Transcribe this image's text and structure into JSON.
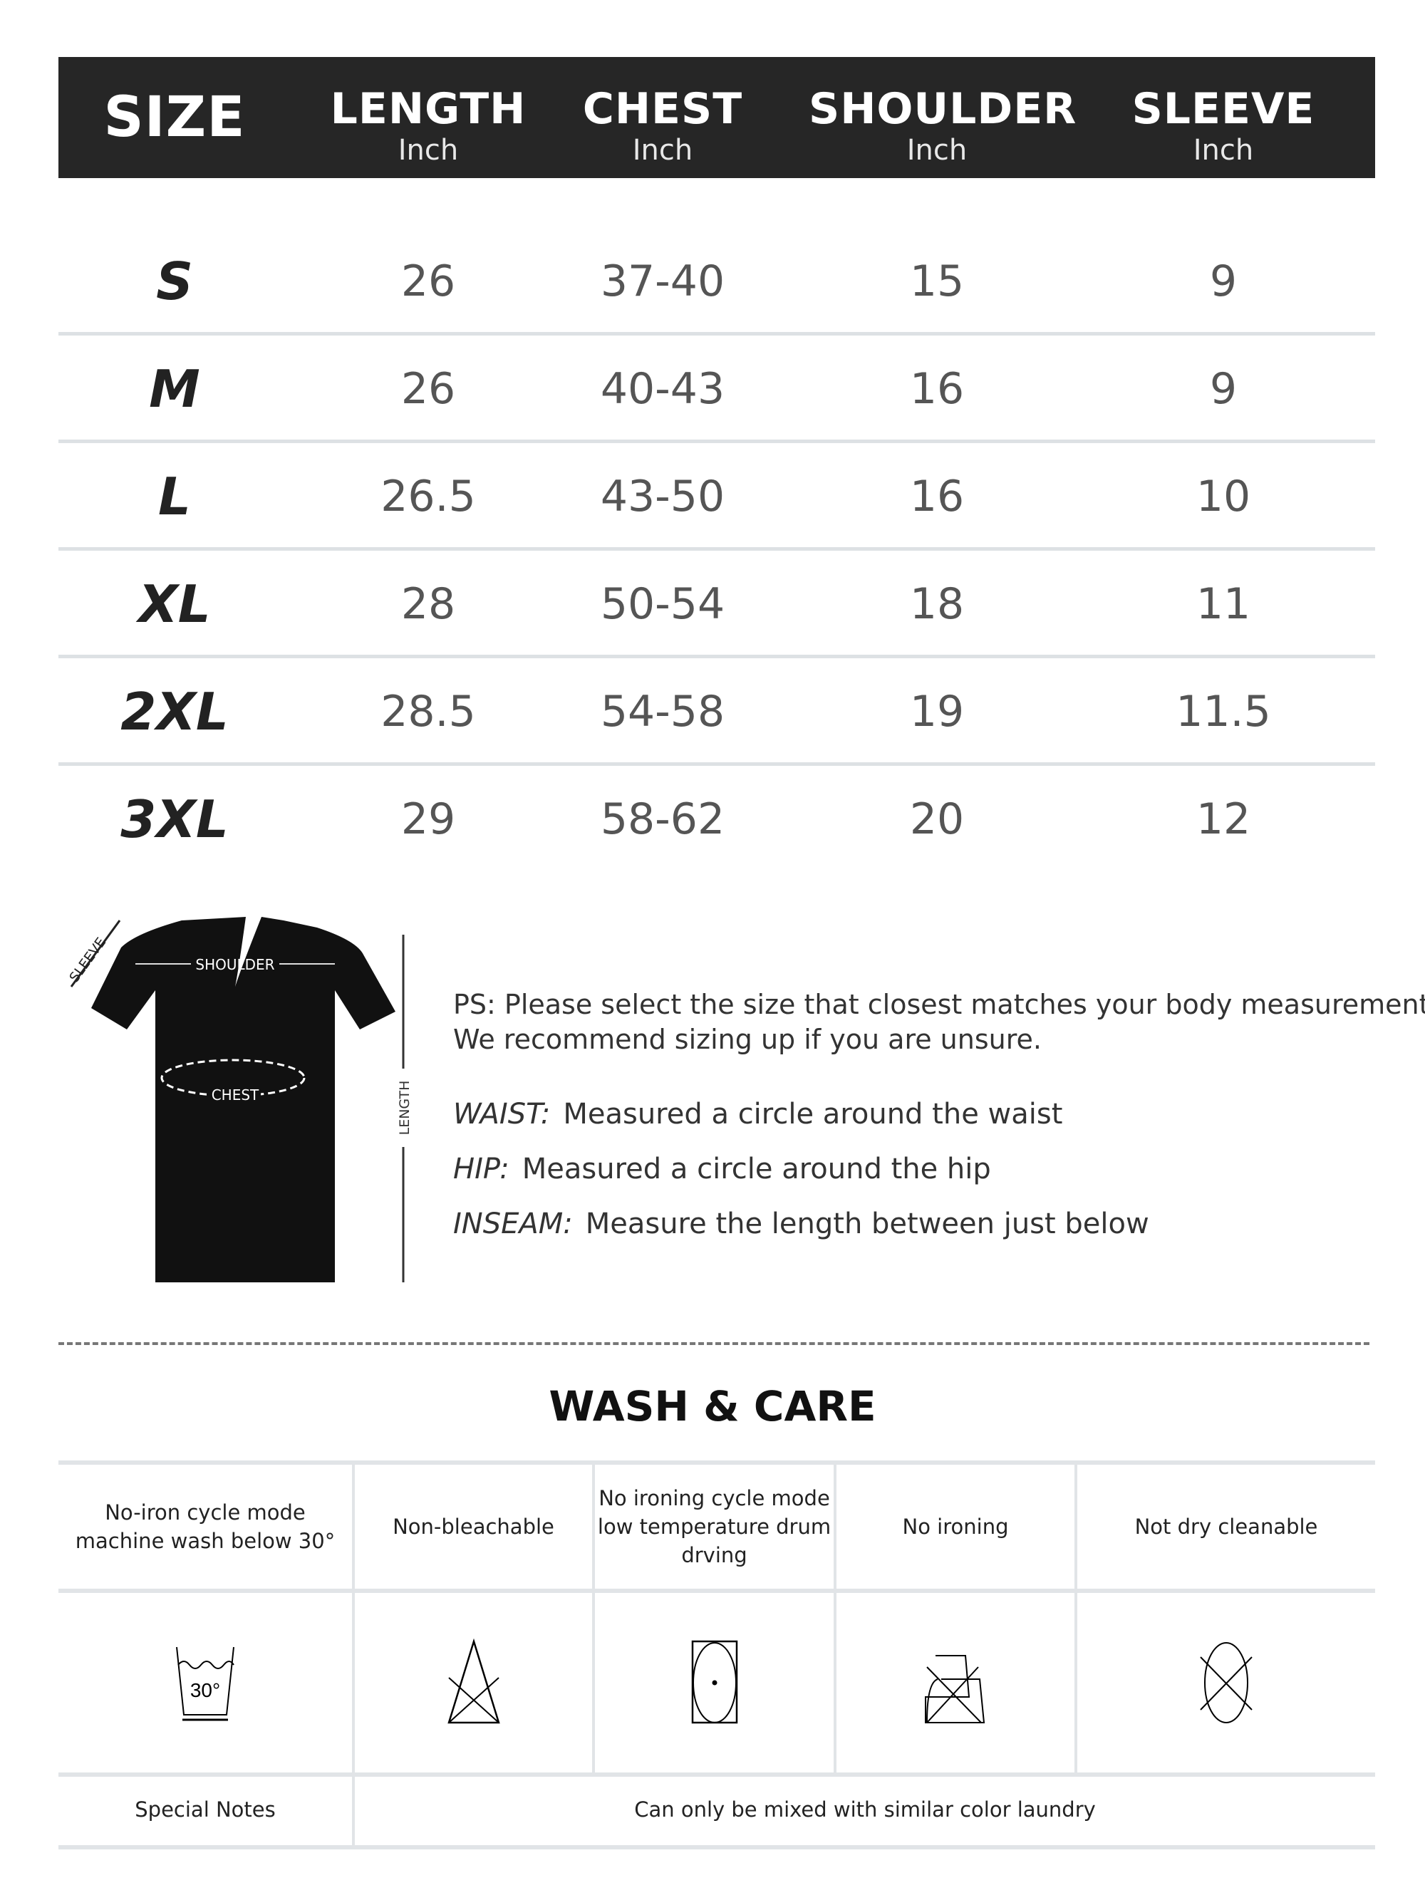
{
  "size_table": {
    "headers": [
      {
        "title": "SIZE",
        "unit": ""
      },
      {
        "title": "LENGTH",
        "unit": "Inch"
      },
      {
        "title": "CHEST",
        "unit": "Inch"
      },
      {
        "title": "SHOULDER",
        "unit": "Inch"
      },
      {
        "title": "SLEEVE",
        "unit": "Inch"
      }
    ],
    "rows": [
      [
        "S",
        "26",
        "37-40",
        "15",
        "9"
      ],
      [
        "M",
        "26",
        "40-43",
        "16",
        "9"
      ],
      [
        "L",
        "26.5",
        "43-50",
        "16",
        "10"
      ],
      [
        "XL",
        "28",
        "50-54",
        "18",
        "11"
      ],
      [
        "2XL",
        "28.5",
        "54-58",
        "19",
        "11.5"
      ],
      [
        "3XL",
        "29",
        "58-62",
        "20",
        "12"
      ]
    ]
  },
  "diagram": {
    "sleeve": "SLEEVE",
    "shoulder": "SHOULDER",
    "chest": "CHEST",
    "length": "LENGTH"
  },
  "notes": {
    "ps_line1": "PS: Please select the size that closest matches your body measurement.",
    "ps_line2": "We recommend sizing up if you are unsure.",
    "definitions": [
      {
        "term": "WAIST:",
        "text": "Measured a circle around the waist"
      },
      {
        "term": "HIP:",
        "text": "Measured a circle around the hip"
      },
      {
        "term": "INSEAM:",
        "text": "Measure the length between just below"
      }
    ]
  },
  "care": {
    "title": "WASH & CARE",
    "items": [
      {
        "label": "No-iron cycle mode\nmachine wash below 30°",
        "icon": "wash-30-icon",
        "temp": "30°"
      },
      {
        "label": "Non-bleachable",
        "icon": "no-bleach-icon"
      },
      {
        "label": "No ironing cycle mode\nlow temperature drum\ndrving",
        "icon": "tumble-dry-low-icon"
      },
      {
        "label": "No ironing",
        "icon": "no-iron-icon"
      },
      {
        "label": "Not dry cleanable",
        "icon": "no-dry-clean-icon"
      }
    ],
    "special_label": "Special Notes",
    "special_text": "Can only be mixed with similar color laundry"
  }
}
